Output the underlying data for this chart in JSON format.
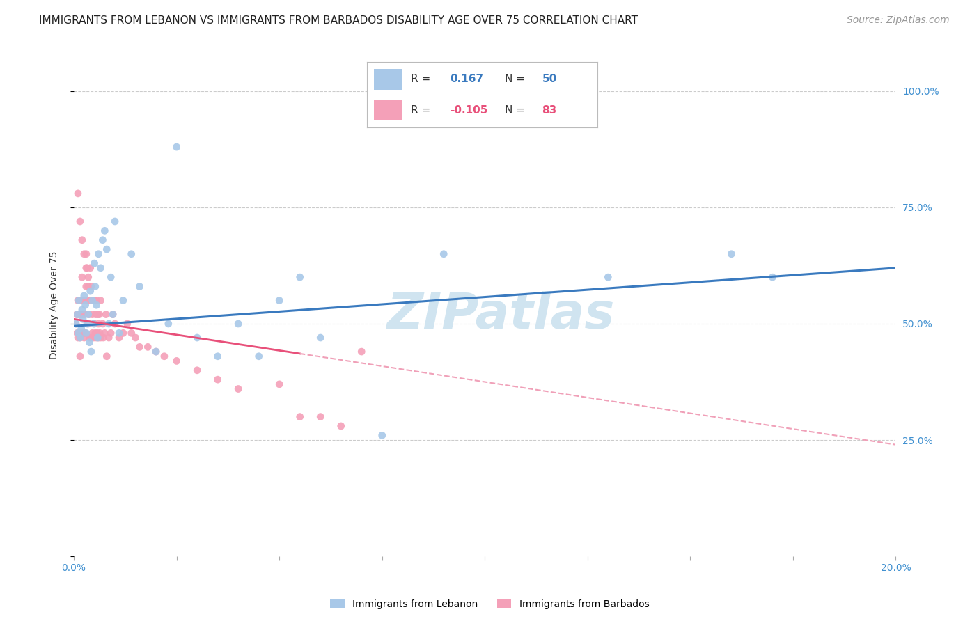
{
  "title": "IMMIGRANTS FROM LEBANON VS IMMIGRANTS FROM BARBADOS DISABILITY AGE OVER 75 CORRELATION CHART",
  "source": "Source: ZipAtlas.com",
  "ylabel": "Disability Age Over 75",
  "xmin": 0.0,
  "xmax": 20.0,
  "ymin": 0.0,
  "ymax": 108.0,
  "y_ticks": [
    0,
    25,
    50,
    75,
    100
  ],
  "lebanon_color": "#a8c8e8",
  "barbados_color": "#f4a0b8",
  "regression_lebanon_color": "#3a7abf",
  "regression_barbados_solid_color": "#e8507a",
  "regression_barbados_dashed_color": "#f0a0b8",
  "watermark": "ZIPatlas",
  "watermark_color": "#d0e4f0",
  "title_fontsize": 11,
  "source_fontsize": 10,
  "axis_label_fontsize": 10,
  "tick_fontsize": 10,
  "legend_fontsize": 11,
  "watermark_fontsize": 52,
  "background_color": "#ffffff",
  "grid_color": "#cccccc",
  "reg_leb_x0": 0.0,
  "reg_leb_y0": 49.5,
  "reg_leb_x1": 20.0,
  "reg_leb_y1": 62.0,
  "reg_bar_x0": 0.0,
  "reg_bar_y0": 51.0,
  "reg_bar_x1": 20.0,
  "reg_bar_y1": 24.0,
  "reg_bar_solid_end_x": 5.5,
  "leb_pts_x": [
    0.05,
    0.08,
    0.1,
    0.12,
    0.15,
    0.18,
    0.2,
    0.22,
    0.25,
    0.28,
    0.3,
    0.32,
    0.35,
    0.38,
    0.4,
    0.42,
    0.45,
    0.48,
    0.5,
    0.52,
    0.55,
    0.58,
    0.6,
    0.65,
    0.7,
    0.75,
    0.8,
    0.85,
    0.9,
    0.95,
    1.0,
    1.1,
    1.2,
    1.4,
    1.6,
    2.0,
    2.3,
    2.5,
    3.0,
    3.5,
    4.0,
    4.5,
    5.0,
    5.5,
    6.0,
    7.5,
    9.0,
    13.0,
    16.0,
    17.0
  ],
  "leb_pts_y": [
    50,
    52,
    48,
    55,
    47,
    49,
    53,
    51,
    56,
    54,
    48,
    50,
    52,
    46,
    57,
    44,
    55,
    50,
    63,
    58,
    54,
    47,
    65,
    62,
    68,
    70,
    66,
    50,
    60,
    52,
    72,
    48,
    55,
    65,
    58,
    44,
    50,
    88,
    47,
    43,
    50,
    43,
    55,
    60,
    47,
    26,
    65,
    60,
    65,
    60
  ],
  "bar_pts_x": [
    0.05,
    0.07,
    0.08,
    0.1,
    0.1,
    0.12,
    0.12,
    0.13,
    0.15,
    0.15,
    0.17,
    0.18,
    0.2,
    0.2,
    0.22,
    0.23,
    0.25,
    0.25,
    0.27,
    0.28,
    0.3,
    0.3,
    0.32,
    0.33,
    0.35,
    0.35,
    0.37,
    0.38,
    0.4,
    0.4,
    0.42,
    0.43,
    0.45,
    0.45,
    0.47,
    0.48,
    0.5,
    0.5,
    0.52,
    0.53,
    0.55,
    0.55,
    0.57,
    0.58,
    0.6,
    0.6,
    0.62,
    0.63,
    0.65,
    0.65,
    0.7,
    0.72,
    0.75,
    0.78,
    0.8,
    0.85,
    0.9,
    0.95,
    1.0,
    1.1,
    1.2,
    1.3,
    1.4,
    1.5,
    1.6,
    1.8,
    2.0,
    2.2,
    2.5,
    3.0,
    3.5,
    4.0,
    5.0,
    5.5,
    6.0,
    6.5,
    7.0,
    0.1,
    0.15,
    0.2,
    0.25,
    0.3,
    0.35
  ],
  "bar_pts_y": [
    50,
    52,
    48,
    55,
    47,
    52,
    48,
    55,
    47,
    43,
    52,
    48,
    60,
    55,
    52,
    48,
    55,
    47,
    52,
    48,
    65,
    58,
    62,
    55,
    58,
    50,
    52,
    47,
    62,
    55,
    58,
    47,
    52,
    48,
    55,
    47,
    50,
    55,
    48,
    52,
    47,
    55,
    48,
    52,
    50,
    47,
    52,
    48,
    55,
    47,
    50,
    47,
    48,
    52,
    43,
    47,
    48,
    52,
    50,
    47,
    48,
    50,
    48,
    47,
    45,
    45,
    44,
    43,
    42,
    40,
    38,
    36,
    37,
    30,
    30,
    28,
    44,
    78,
    72,
    68,
    65,
    62,
    60
  ]
}
